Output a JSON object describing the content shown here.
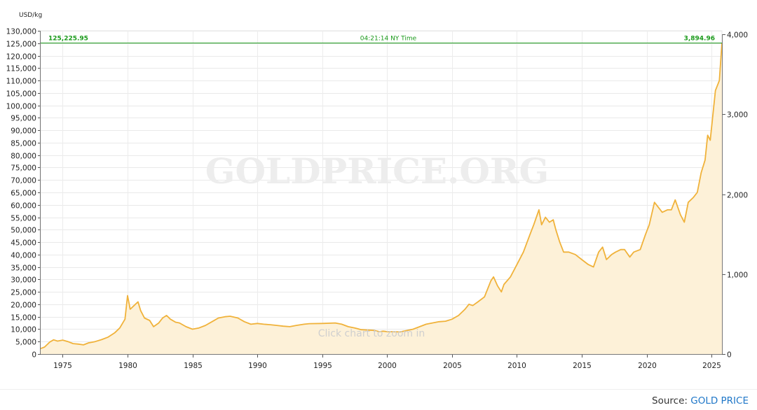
{
  "chart_data": {
    "type": "area",
    "title": "",
    "y_left_unit": "USD/kg",
    "xlabel": "",
    "ylabel": "USD/kg",
    "xlim": [
      1973.3,
      2025.8
    ],
    "ylim_left": [
      0,
      130000
    ],
    "ylim_right": [
      0,
      4000
    ],
    "x_ticks": [
      "1975",
      "1980",
      "1985",
      "1990",
      "1995",
      "2000",
      "2005",
      "2010",
      "2015",
      "2020",
      "2025"
    ],
    "y_left_ticks": [
      "0",
      "5,000",
      "10,000",
      "15,000",
      "20,000",
      "25,000",
      "30,000",
      "35,000",
      "40,000",
      "45,000",
      "50,000",
      "55,000",
      "60,000",
      "65,000",
      "70,000",
      "75,000",
      "80,000",
      "85,000",
      "90,000",
      "95,000",
      "100,000",
      "105,000",
      "110,000",
      "115,000",
      "120,000",
      "125,000",
      "130,000"
    ],
    "y_right_ticks": [
      "0",
      "1,000",
      "2,000",
      "3,000",
      "4,000"
    ],
    "grid": true,
    "series": [
      {
        "color": "#f0b23a",
        "fill": "#fdf1d8",
        "x": [
          1973.3,
          1973.6,
          1974.0,
          1974.3,
          1974.6,
          1975.0,
          1975.4,
          1975.8,
          1976.2,
          1976.6,
          1977.0,
          1977.5,
          1978.0,
          1978.5,
          1979.0,
          1979.4,
          1979.8,
          1980.0,
          1980.2,
          1980.5,
          1980.8,
          1981.0,
          1981.3,
          1981.7,
          1982.0,
          1982.4,
          1982.7,
          1983.0,
          1983.3,
          1983.7,
          1984.0,
          1984.5,
          1985.0,
          1985.5,
          1986.0,
          1986.5,
          1987.0,
          1987.5,
          1987.9,
          1988.5,
          1989.0,
          1989.5,
          1990.0,
          1990.5,
          1991.0,
          1991.5,
          1992.0,
          1992.5,
          1993.0,
          1993.6,
          1994.0,
          1995.0,
          1996.0,
          1996.5,
          1997.0,
          1997.5,
          1998.0,
          1999.0,
          1999.4,
          1999.7,
          2000.0,
          2001.0,
          2002.0,
          2003.0,
          2004.0,
          2004.5,
          2005.0,
          2005.5,
          2006.0,
          2006.3,
          2006.6,
          2007.0,
          2007.5,
          2008.0,
          2008.2,
          2008.5,
          2008.8,
          2009.0,
          2009.5,
          2010.0,
          2010.5,
          2011.0,
          2011.3,
          2011.7,
          2011.9,
          2012.2,
          2012.5,
          2012.8,
          2013.0,
          2013.3,
          2013.6,
          2014.0,
          2014.5,
          2015.0,
          2015.5,
          2015.9,
          2016.3,
          2016.6,
          2016.9,
          2017.3,
          2017.6,
          2018.0,
          2018.3,
          2018.7,
          2019.0,
          2019.5,
          2019.9,
          2020.2,
          2020.6,
          2020.9,
          2021.2,
          2021.6,
          2021.9,
          2022.2,
          2022.6,
          2022.9,
          2023.2,
          2023.6,
          2023.9,
          2024.2,
          2024.5,
          2024.7,
          2024.9,
          2025.1,
          2025.3,
          2025.6,
          2025.8
        ],
        "y": [
          2200,
          2800,
          4800,
          5700,
          5200,
          5600,
          5000,
          4200,
          4000,
          3700,
          4500,
          5000,
          5800,
          6800,
          8500,
          10500,
          14000,
          23500,
          18000,
          19500,
          21000,
          17500,
          14500,
          13500,
          11000,
          12500,
          14500,
          15500,
          14000,
          12800,
          12500,
          11000,
          10000,
          10500,
          11500,
          13000,
          14500,
          15000,
          15200,
          14500,
          13000,
          12000,
          12300,
          12000,
          11800,
          11500,
          11200,
          11000,
          11500,
          12000,
          12200,
          12300,
          12500,
          12000,
          11000,
          10500,
          9800,
          9500,
          9000,
          9200,
          9000,
          8900,
          10000,
          12000,
          13000,
          13200,
          14000,
          15500,
          18000,
          20000,
          19500,
          21000,
          23000,
          29500,
          31000,
          27500,
          25000,
          28000,
          31000,
          36000,
          41000,
          48000,
          52000,
          58000,
          52000,
          55000,
          53000,
          54000,
          50000,
          45000,
          41000,
          41000,
          40000,
          38000,
          36000,
          35000,
          41000,
          43000,
          38000,
          40000,
          41000,
          42000,
          42000,
          39000,
          41000,
          42000,
          48000,
          52000,
          61000,
          59000,
          57000,
          58000,
          58000,
          62000,
          56000,
          53000,
          61000,
          63000,
          65000,
          73000,
          78000,
          88000,
          86000,
          96000,
          106000,
          110000,
          125226
        ]
      }
    ],
    "annotations": {
      "current_left": "125,225.95",
      "time": "04:21:14 NY Time",
      "current_right": "3,894.96",
      "watermark": "GOLDPRICE.ORG",
      "hint": "Click chart to zoom in"
    }
  },
  "footer": {
    "source_label": "Source:",
    "source_link": "GOLD PRICE"
  }
}
